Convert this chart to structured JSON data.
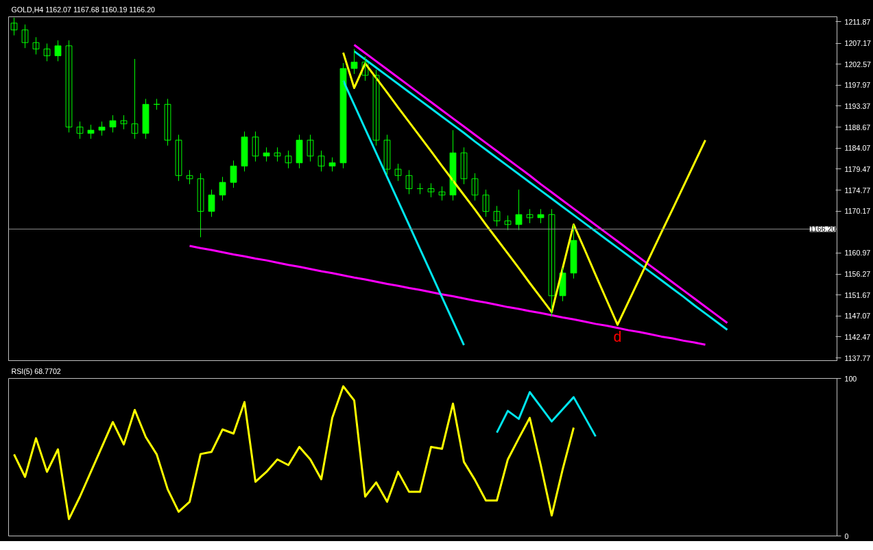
{
  "chart_data": [
    {
      "type": "candlestick",
      "title": "GOLD,H4  1162.07 1167.68 1160.19 1166.20",
      "color": "#00ff00",
      "categories": [
        null,
        null,
        null,
        null,
        null,
        null,
        null,
        null,
        null,
        null,
        null,
        null,
        null,
        null,
        null,
        null,
        null,
        null,
        null,
        null,
        null,
        null,
        null,
        null,
        null,
        null,
        null,
        null,
        null,
        null,
        null,
        null,
        null,
        null,
        null,
        null,
        null,
        null,
        null,
        null,
        null,
        null,
        null,
        null,
        null,
        null,
        null,
        null,
        null,
        null,
        null,
        null,
        null,
        null,
        null,
        null,
        null,
        null,
        null,
        null,
        null,
        null,
        null,
        null,
        null,
        null
      ],
      "ohlc": [
        [
          1211.6,
          1212.8,
          1208.9,
          1210.1
        ],
        [
          1210.1,
          1211.3,
          1206.1,
          1207.3
        ],
        [
          1207.3,
          1208.5,
          1204.7,
          1205.9
        ],
        [
          1205.9,
          1207.1,
          1203.2,
          1204.4
        ],
        [
          1204.4,
          1207.8,
          1203.2,
          1206.6
        ],
        [
          1206.6,
          1207.8,
          1187.5,
          1188.7
        ],
        [
          1188.7,
          1189.9,
          1186.1,
          1187.3
        ],
        [
          1187.3,
          1189.2,
          1186.1,
          1188.0
        ],
        [
          1188.0,
          1189.9,
          1186.8,
          1188.7
        ],
        [
          1188.7,
          1191.3,
          1187.5,
          1190.1
        ],
        [
          1190.1,
          1191.3,
          1188.2,
          1189.4
        ],
        [
          1189.4,
          1203.7,
          1186.1,
          1187.3
        ],
        [
          1187.3,
          1194.9,
          1186.1,
          1193.7
        ],
        [
          1193.7,
          1194.9,
          1192.5,
          1193.7
        ],
        [
          1193.7,
          1194.9,
          1184.6,
          1185.8
        ],
        [
          1185.8,
          1187.0,
          1176.8,
          1178.0
        ],
        [
          1178.0,
          1179.2,
          1176.1,
          1177.3
        ],
        [
          1177.3,
          1178.5,
          1164.4,
          1170.1
        ],
        [
          1170.1,
          1174.9,
          1168.9,
          1173.7
        ],
        [
          1173.7,
          1177.7,
          1172.5,
          1176.5
        ],
        [
          1176.5,
          1181.3,
          1175.3,
          1180.1
        ],
        [
          1180.1,
          1187.7,
          1178.9,
          1186.5
        ],
        [
          1186.5,
          1187.7,
          1181.1,
          1182.3
        ],
        [
          1182.3,
          1184.2,
          1181.1,
          1183.0
        ],
        [
          1183.0,
          1184.2,
          1181.1,
          1182.3
        ],
        [
          1182.3,
          1183.5,
          1179.6,
          1180.8
        ],
        [
          1180.8,
          1187.0,
          1179.6,
          1185.8
        ],
        [
          1185.8,
          1187.0,
          1181.1,
          1182.3
        ],
        [
          1182.3,
          1183.5,
          1178.9,
          1180.1
        ],
        [
          1180.1,
          1182.0,
          1178.9,
          1180.8
        ],
        [
          1180.8,
          1202.8,
          1179.6,
          1201.6
        ],
        [
          1201.6,
          1205.9,
          1200.4,
          1203.0
        ],
        [
          1203.0,
          1204.2,
          1198.9,
          1200.1
        ],
        [
          1200.1,
          1201.3,
          1184.6,
          1185.8
        ],
        [
          1185.8,
          1187.0,
          1178.2,
          1179.4
        ],
        [
          1179.4,
          1180.6,
          1176.8,
          1178.0
        ],
        [
          1178.0,
          1179.2,
          1173.9,
          1175.1
        ],
        [
          1175.1,
          1176.3,
          1173.9,
          1175.1
        ],
        [
          1175.1,
          1176.3,
          1173.2,
          1174.4
        ],
        [
          1174.4,
          1175.6,
          1172.5,
          1173.7
        ],
        [
          1173.7,
          1188.0,
          1172.5,
          1183.0
        ],
        [
          1183.0,
          1184.2,
          1176.1,
          1177.3
        ],
        [
          1177.3,
          1178.5,
          1172.5,
          1173.7
        ],
        [
          1173.7,
          1174.9,
          1168.9,
          1170.1
        ],
        [
          1170.1,
          1171.3,
          1166.8,
          1168.0
        ],
        [
          1168.0,
          1169.2,
          1166.0,
          1167.2
        ],
        [
          1167.2,
          1174.9,
          1166.0,
          1169.4
        ],
        [
          1169.4,
          1170.6,
          1167.5,
          1168.7
        ],
        [
          1168.7,
          1170.6,
          1167.5,
          1169.4
        ],
        [
          1169.4,
          1170.6,
          1146.9,
          1151.5
        ],
        [
          1151.5,
          1157.7,
          1150.3,
          1156.5
        ],
        [
          1156.5,
          1167.2,
          1155.3,
          1163.7
        ],
        null,
        null,
        null,
        null,
        null,
        null,
        null,
        null,
        null,
        null,
        null,
        null,
        null,
        null
      ],
      "series": [
        {
          "type": "line",
          "color": "#ff00ff",
          "values": [
            null,
            null,
            null,
            null,
            null,
            null,
            null,
            null,
            null,
            null,
            null,
            null,
            null,
            null,
            null,
            null,
            1162.5,
            1162.0,
            1161.6,
            1161.1,
            1160.6,
            1160.2,
            1159.7,
            1159.3,
            1158.8,
            1158.3,
            1157.9,
            1157.4,
            1156.9,
            1156.5,
            1156.0,
            1155.5,
            1155.1,
            1154.6,
            1154.1,
            1153.7,
            1153.2,
            1152.8,
            1152.3,
            1151.8,
            1151.4,
            1150.9,
            1150.4,
            1150.0,
            1149.5,
            1149.0,
            1148.6,
            1148.1,
            1147.7,
            1147.2,
            1146.7,
            1146.3,
            1145.8,
            1145.3,
            1144.9,
            1144.4,
            1143.9,
            1143.5,
            1143.0,
            1142.5,
            1142.1,
            1141.6,
            1141.2,
            1140.7,
            null,
            null
          ]
        },
        {
          "type": "line",
          "color": "#ff00ff",
          "values": [
            null,
            null,
            null,
            null,
            null,
            null,
            null,
            null,
            null,
            null,
            null,
            null,
            null,
            null,
            null,
            null,
            null,
            null,
            null,
            null,
            null,
            null,
            null,
            null,
            null,
            null,
            null,
            null,
            null,
            null,
            null,
            1206.8,
            1205.0,
            1203.2,
            1201.4,
            1199.6,
            1197.8,
            1196.0,
            1194.2,
            1192.4,
            1190.6,
            1188.8,
            1187.0,
            1185.2,
            1183.4,
            1181.6,
            1179.8,
            1178.0,
            1176.1,
            1174.3,
            1172.5,
            1170.7,
            1168.9,
            1167.1,
            1165.3,
            1163.5,
            1161.7,
            1159.9,
            1158.1,
            1156.3,
            1154.5,
            1152.7,
            1150.9,
            1149.1,
            1147.3,
            1145.5
          ]
        },
        {
          "type": "line",
          "color": "#00e5ee",
          "values": [
            null,
            null,
            null,
            null,
            null,
            null,
            null,
            null,
            null,
            null,
            null,
            null,
            null,
            null,
            null,
            null,
            null,
            null,
            null,
            null,
            null,
            null,
            null,
            null,
            null,
            null,
            null,
            null,
            null,
            null,
            null,
            1205.4,
            1203.6,
            1201.8,
            1200.0,
            1198.2,
            1196.4,
            1194.6,
            1192.8,
            1191.0,
            1189.2,
            1187.4,
            1185.5,
            1183.7,
            1181.9,
            1180.1,
            1178.3,
            1176.5,
            1174.7,
            1172.9,
            1171.1,
            1169.3,
            1167.5,
            1165.7,
            1163.9,
            1162.1,
            1160.3,
            1158.5,
            1156.7,
            1154.9,
            1153.1,
            1151.3,
            1149.4,
            1147.6,
            1145.8,
            1144.0
          ]
        },
        {
          "type": "line",
          "color": "#00e5ee",
          "values": [
            null,
            null,
            null,
            null,
            null,
            null,
            null,
            null,
            null,
            null,
            null,
            null,
            null,
            null,
            null,
            null,
            null,
            null,
            null,
            null,
            null,
            null,
            null,
            null,
            null,
            null,
            null,
            null,
            null,
            null,
            1198.9,
            1193.6,
            1188.3,
            1183.0,
            1177.7,
            1172.4,
            1167.1,
            1161.8,
            1156.5,
            1151.2,
            1145.9,
            1140.6,
            null,
            null,
            null,
            null,
            null,
            null,
            null,
            null,
            null,
            null,
            null,
            null,
            null,
            null,
            null,
            null,
            null,
            null,
            null,
            null,
            null,
            null,
            null,
            null
          ]
        },
        {
          "type": "line",
          "color": "#ffff00",
          "values": [
            null,
            null,
            null,
            null,
            null,
            null,
            null,
            null,
            null,
            null,
            null,
            null,
            null,
            null,
            null,
            null,
            null,
            null,
            null,
            null,
            null,
            null,
            null,
            null,
            null,
            null,
            null,
            null,
            null,
            null,
            1205.1,
            1197.3,
            1202.7,
            1199.5,
            1196.3,
            1193.0,
            1189.8,
            1186.6,
            1183.4,
            1180.1,
            1176.9,
            1173.7,
            1170.5,
            1167.2,
            1164.0,
            1160.8,
            1157.6,
            1154.3,
            1151.1,
            1147.9,
            1157.6,
            1167.2,
            1161.7,
            1156.1,
            1150.6,
            1145.1,
            1150.2,
            1155.3,
            1160.4,
            1165.5,
            1170.5,
            1175.6,
            1180.7,
            1185.8,
            null,
            null
          ]
        }
      ],
      "ylim": [
        1137.2,
        1213.0
      ],
      "yticks": [
        1137.77,
        1142.47,
        1147.07,
        1151.67,
        1156.27,
        1160.97,
        1170.17,
        1174.77,
        1179.47,
        1184.07,
        1188.67,
        1193.37,
        1197.97,
        1202.57,
        1207.17,
        1211.87
      ],
      "ref_lines": [
        {
          "axis": "y",
          "value": 1166.2,
          "label": "1166.20",
          "color": "#8c8c8c"
        }
      ],
      "annotations": [
        "d"
      ],
      "tick_labels": "y"
    },
    {
      "type": "line",
      "title": "RSI(5) 68.7702",
      "categories": [
        null,
        null,
        null,
        null,
        null,
        null,
        null,
        null,
        null,
        null,
        null,
        null,
        null,
        null,
        null,
        null,
        null,
        null,
        null,
        null,
        null,
        null,
        null,
        null,
        null,
        null,
        null,
        null,
        null,
        null,
        null,
        null,
        null,
        null,
        null,
        null,
        null,
        null,
        null,
        null,
        null,
        null,
        null,
        null,
        null,
        null,
        null,
        null,
        null,
        null,
        null,
        null,
        null,
        null,
        null,
        null,
        null,
        null,
        null,
        null,
        null,
        null,
        null,
        null,
        null,
        null
      ],
      "series": [
        {
          "color": "#ffff00",
          "values": [
            51.8,
            37.5,
            62,
            40.7,
            55,
            10.7,
            24.9,
            40.7,
            56.5,
            72.3,
            58.1,
            80,
            62.8,
            51.8,
            29.6,
            15.4,
            21.7,
            52,
            53.4,
            67.6,
            65,
            85,
            34.4,
            40.7,
            48.6,
            45,
            56.5,
            48.6,
            36,
            75,
            95,
            86,
            25,
            34,
            21.7,
            40.7,
            28,
            28,
            56.5,
            55.3,
            84,
            47,
            35.6,
            22.5,
            22.5,
            48.6,
            62,
            75,
            45,
            13,
            42.3,
            68.8,
            null,
            null,
            null,
            null,
            null,
            null,
            null,
            null,
            null,
            null,
            null,
            null,
            null,
            null
          ]
        },
        {
          "color": "#00e5ee",
          "values": [
            null,
            null,
            null,
            null,
            null,
            null,
            null,
            null,
            null,
            null,
            null,
            null,
            null,
            null,
            null,
            null,
            null,
            null,
            null,
            null,
            null,
            null,
            null,
            null,
            null,
            null,
            null,
            null,
            null,
            null,
            null,
            null,
            null,
            null,
            null,
            null,
            null,
            null,
            null,
            null,
            null,
            null,
            null,
            null,
            65.6,
            79.4,
            74.3,
            91.3,
            82.0,
            72.7,
            80.4,
            88.1,
            75.7,
            63.2,
            null,
            null,
            null,
            null,
            null,
            null,
            null,
            null,
            null,
            null,
            null,
            null
          ]
        }
      ],
      "ylim": [
        0,
        100
      ],
      "yticks": [
        0,
        100
      ],
      "tick_labels": "y"
    }
  ]
}
